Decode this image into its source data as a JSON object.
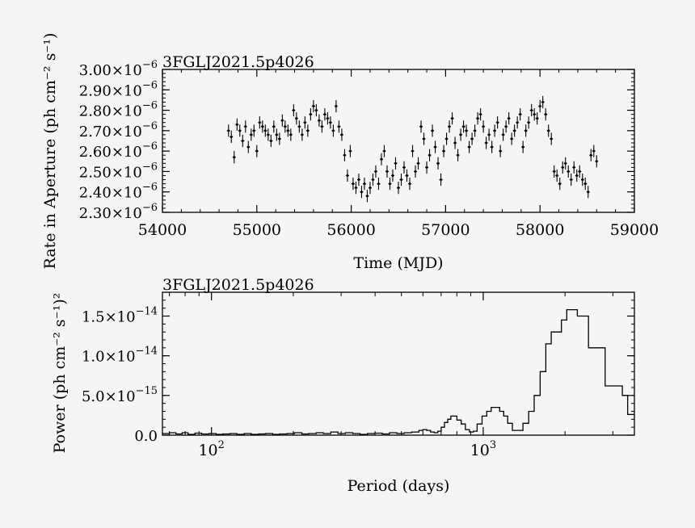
{
  "colors": {
    "background": "#f5f5f5",
    "ink": "#000000"
  },
  "chart_data": [
    {
      "type": "scatter",
      "title": "3FGLJ2021.5p4026",
      "xlabel": "Time (MJD)",
      "ylabel": "Rate in Aperture (ph cm⁻² s⁻¹)",
      "xlim": [
        54000,
        59000
      ],
      "ylim": [
        2.3e-06,
        3e-06
      ],
      "xticks": [
        {
          "value": 54000,
          "label": "54000"
        },
        {
          "value": 55000,
          "label": "55000"
        },
        {
          "value": 56000,
          "label": "56000"
        },
        {
          "value": 57000,
          "label": "57000"
        },
        {
          "value": 58000,
          "label": "58000"
        },
        {
          "value": 59000,
          "label": "59000"
        }
      ],
      "yticks": [
        {
          "value": 2.3e-06,
          "mant": "2.30×10",
          "exp": "−6"
        },
        {
          "value": 2.4e-06,
          "mant": "2.40×10",
          "exp": "−6"
        },
        {
          "value": 2.5e-06,
          "mant": "2.50×10",
          "exp": "−6"
        },
        {
          "value": 2.6e-06,
          "mant": "2.60×10",
          "exp": "−6"
        },
        {
          "value": 2.7e-06,
          "mant": "2.70×10",
          "exp": "−6"
        },
        {
          "value": 2.8e-06,
          "mant": "2.80×10",
          "exp": "−6"
        },
        {
          "value": 2.9e-06,
          "mant": "2.90×10",
          "exp": "−6"
        },
        {
          "value": 3e-06,
          "mant": "3.00×10",
          "exp": "−6"
        }
      ],
      "error_bar": 3e-08,
      "x": [
        54700,
        54730,
        54760,
        54790,
        54820,
        54850,
        54880,
        54910,
        54940,
        54970,
        55000,
        55030,
        55060,
        55090,
        55120,
        55150,
        55180,
        55210,
        55240,
        55270,
        55300,
        55330,
        55360,
        55390,
        55420,
        55450,
        55480,
        55510,
        55540,
        55570,
        55600,
        55630,
        55660,
        55690,
        55720,
        55750,
        55780,
        55810,
        55840,
        55870,
        55900,
        55930,
        55960,
        55990,
        56020,
        56050,
        56080,
        56110,
        56140,
        56170,
        56200,
        56230,
        56260,
        56290,
        56320,
        56350,
        56380,
        56410,
        56440,
        56470,
        56500,
        56530,
        56560,
        56590,
        56620,
        56650,
        56680,
        56710,
        56740,
        56770,
        56800,
        56830,
        56860,
        56890,
        56920,
        56950,
        56980,
        57010,
        57040,
        57070,
        57100,
        57130,
        57160,
        57190,
        57220,
        57250,
        57280,
        57310,
        57340,
        57370,
        57400,
        57430,
        57460,
        57490,
        57520,
        57550,
        57580,
        57610,
        57640,
        57670,
        57700,
        57730,
        57760,
        57790,
        57820,
        57850,
        57880,
        57910,
        57940,
        57970,
        58000,
        58030,
        58060,
        58090,
        58120,
        58150,
        58180,
        58210,
        58240,
        58270,
        58300,
        58330,
        58360,
        58390,
        58420,
        58450,
        58480,
        58510,
        58540,
        58570,
        58600
      ],
      "y": [
        2.7e-06,
        2.67e-06,
        2.57e-06,
        2.73e-06,
        2.7e-06,
        2.65e-06,
        2.72e-06,
        2.62e-06,
        2.68e-06,
        2.7e-06,
        2.6e-06,
        2.74e-06,
        2.72e-06,
        2.7e-06,
        2.68e-06,
        2.65e-06,
        2.72e-06,
        2.68e-06,
        2.66e-06,
        2.75e-06,
        2.72e-06,
        2.7e-06,
        2.68e-06,
        2.8e-06,
        2.76e-06,
        2.72e-06,
        2.68e-06,
        2.74e-06,
        2.7e-06,
        2.78e-06,
        2.82e-06,
        2.8e-06,
        2.75e-06,
        2.72e-06,
        2.78e-06,
        2.76e-06,
        2.74e-06,
        2.7e-06,
        2.82e-06,
        2.72e-06,
        2.68e-06,
        2.58e-06,
        2.48e-06,
        2.6e-06,
        2.44e-06,
        2.42e-06,
        2.46e-06,
        2.4e-06,
        2.44e-06,
        2.38e-06,
        2.42e-06,
        2.46e-06,
        2.5e-06,
        2.44e-06,
        2.56e-06,
        2.6e-06,
        2.5e-06,
        2.44e-06,
        2.48e-06,
        2.54e-06,
        2.42e-06,
        2.46e-06,
        2.52e-06,
        2.48e-06,
        2.44e-06,
        2.6e-06,
        2.5e-06,
        2.54e-06,
        2.72e-06,
        2.66e-06,
        2.52e-06,
        2.58e-06,
        2.7e-06,
        2.62e-06,
        2.54e-06,
        2.46e-06,
        2.6e-06,
        2.66e-06,
        2.72e-06,
        2.76e-06,
        2.64e-06,
        2.58e-06,
        2.68e-06,
        2.72e-06,
        2.7e-06,
        2.62e-06,
        2.66e-06,
        2.7e-06,
        2.76e-06,
        2.78e-06,
        2.72e-06,
        2.64e-06,
        2.68e-06,
        2.62e-06,
        2.7e-06,
        2.74e-06,
        2.6e-06,
        2.68e-06,
        2.72e-06,
        2.76e-06,
        2.66e-06,
        2.7e-06,
        2.74e-06,
        2.78e-06,
        2.62e-06,
        2.7e-06,
        2.74e-06,
        2.8e-06,
        2.78e-06,
        2.76e-06,
        2.82e-06,
        2.84e-06,
        2.78e-06,
        2.7e-06,
        2.66e-06,
        2.5e-06,
        2.48e-06,
        2.44e-06,
        2.52e-06,
        2.54e-06,
        2.5e-06,
        2.46e-06,
        2.52e-06,
        2.48e-06,
        2.5e-06,
        2.46e-06,
        2.44e-06,
        2.4e-06,
        2.58e-06,
        2.6e-06,
        2.55e-06
      ]
    },
    {
      "type": "line",
      "title": "3FGLJ2021.5p4026",
      "xlabel": "Period (days)",
      "ylabel": "Power (ph cm⁻² s⁻¹)²",
      "xscale": "log",
      "xlim": [
        66,
        3600
      ],
      "ylim": [
        0,
        1.8e-14
      ],
      "xticks": [
        {
          "value": 100,
          "base": "10",
          "exp": "2"
        },
        {
          "value": 1000,
          "base": "10",
          "exp": "3"
        }
      ],
      "yticks": [
        {
          "value": 0,
          "mant": "0.0",
          "exp": ""
        },
        {
          "value": 5e-15,
          "mant": "5.0×10",
          "exp": "−15"
        },
        {
          "value": 1e-14,
          "mant": "1.0×10",
          "exp": "−14"
        },
        {
          "value": 1.5e-14,
          "mant": "1.5×10",
          "exp": "−14"
        }
      ],
      "x": [
        66,
        70,
        74,
        78,
        82,
        87,
        92,
        98,
        104,
        110,
        117,
        124,
        132,
        140,
        149,
        158,
        168,
        178,
        190,
        202,
        215,
        228,
        243,
        258,
        275,
        292,
        311,
        331,
        352,
        375,
        399,
        425,
        452,
        481,
        512,
        545,
        580,
        600,
        620,
        640,
        660,
        680,
        700,
        720,
        740,
        760,
        780,
        800,
        830,
        860,
        890,
        920,
        950,
        990,
        1030,
        1070,
        1110,
        1150,
        1190,
        1230,
        1280,
        1340,
        1400,
        1470,
        1540,
        1620,
        1700,
        1780,
        1860,
        1940,
        2030,
        2120,
        2220,
        2330,
        2440,
        2560,
        2680,
        2810,
        2950,
        3100,
        3250,
        3400,
        3600
      ],
      "y": [
        2e-16,
        3e-16,
        1.5e-16,
        3e-16,
        1e-16,
        2.5e-16,
        1.5e-16,
        2e-16,
        1e-16,
        1.5e-16,
        2e-16,
        1e-16,
        2e-16,
        1e-16,
        1.5e-16,
        2e-16,
        1e-16,
        1.5e-16,
        2e-16,
        3e-16,
        1.5e-16,
        2e-16,
        3e-16,
        2e-16,
        4e-16,
        2e-16,
        3e-16,
        2e-16,
        1e-16,
        2e-16,
        2.5e-16,
        1.5e-16,
        3e-16,
        2e-16,
        3e-16,
        4e-16,
        6e-16,
        7e-16,
        6e-16,
        4e-16,
        3e-16,
        5e-16,
        1e-15,
        1.6e-15,
        2e-15,
        2.4e-15,
        2.4e-15,
        1.9e-15,
        1.4e-15,
        7e-16,
        4e-16,
        5e-16,
        1.4e-15,
        2.4e-15,
        3e-15,
        3.5e-15,
        3.5e-15,
        3e-15,
        2.4e-15,
        1.5e-15,
        6e-16,
        6e-16,
        1.5e-15,
        3e-15,
        5e-15,
        8e-15,
        1.15e-14,
        1.3e-14,
        1.3e-14,
        1.45e-14,
        1.58e-14,
        1.58e-14,
        1.5e-14,
        1.5e-14,
        1.1e-14,
        1.1e-14,
        1.1e-14,
        6.2e-15,
        6.2e-15,
        6.2e-15,
        5e-15,
        2.6e-15,
        2.6e-15
      ]
    }
  ]
}
